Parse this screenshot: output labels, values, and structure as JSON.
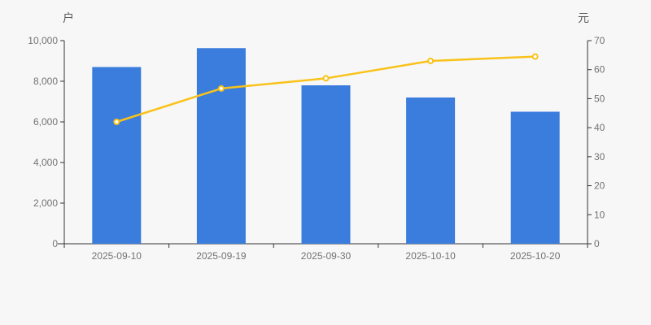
{
  "page": {
    "background_color": "#f7f7f7"
  },
  "chart_data": {
    "type": "bar",
    "subtype": "bar-with-line-overlay",
    "categories": [
      "2025-09-10",
      "2025-09-19",
      "2025-09-30",
      "2025-10-10",
      "2025-10-20"
    ],
    "series": [
      {
        "name": "households-bar-series",
        "type": "bar",
        "axis": "left",
        "color": "#3b7ddd",
        "values": [
          8700,
          9630,
          7800,
          7200,
          6500
        ]
      },
      {
        "name": "price-line-series",
        "type": "line",
        "axis": "right",
        "color": "#f9c219",
        "marker_fill": "#ffffff",
        "values": [
          42,
          53.5,
          57,
          63,
          64.5
        ]
      }
    ],
    "left_axis": {
      "name": "户",
      "min": 0,
      "max": 10000,
      "tick_interval": 2000,
      "tick_labels": [
        "0",
        "2,000",
        "4,000",
        "6,000",
        "8,000",
        "10,000"
      ]
    },
    "right_axis": {
      "name": "元",
      "min": 0,
      "max": 70,
      "tick_interval": 10,
      "tick_labels": [
        "0",
        "10",
        "20",
        "30",
        "40",
        "50",
        "60",
        "70"
      ]
    },
    "xlabel": "",
    "ylabel_left": "户",
    "ylabel_right": "元",
    "title": "",
    "grid": false,
    "legend": false,
    "colors": {
      "axis_line": "#333333",
      "tick_label": "#737373",
      "axis_name": "#595959",
      "background": "#f7f7f7"
    }
  }
}
